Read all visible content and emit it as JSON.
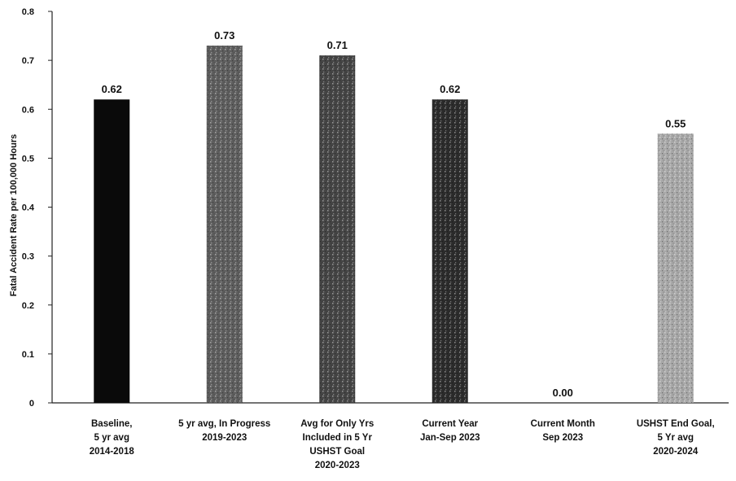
{
  "chart_data": {
    "type": "bar",
    "ylabel": "Fatal Accident Rate per 100,000 Hours",
    "ylim": [
      0,
      0.8
    ],
    "yticks": [
      "0",
      "0.1",
      "0.2",
      "0.3",
      "0.4",
      "0.5",
      "0.6",
      "0.7",
      "0.8"
    ],
    "grid": false,
    "legend": "none",
    "bars": [
      {
        "category": [
          "Baseline,",
          "5 yr avg",
          "2014-2018"
        ],
        "value": 0.62,
        "label": "0.62",
        "fill": "#0a0a0a",
        "pattern": "solid"
      },
      {
        "category": [
          "5 yr avg, In Progress",
          "2019-2023"
        ],
        "value": 0.73,
        "label": "0.73",
        "fill": "#5e5e5e",
        "pattern": "dots"
      },
      {
        "category": [
          "Avg for Only Yrs",
          "Included in 5 Yr",
          "USHST Goal",
          "2020-2023"
        ],
        "value": 0.71,
        "label": "0.71",
        "fill": "#454545",
        "pattern": "dots"
      },
      {
        "category": [
          "Current Year",
          "Jan-Sep 2023"
        ],
        "value": 0.62,
        "label": "0.62",
        "fill": "#2c2c2c",
        "pattern": "dots"
      },
      {
        "category": [
          "Current Month",
          "Sep 2023"
        ],
        "value": 0.0,
        "label": "0.00",
        "fill": "#777777",
        "pattern": "dots"
      },
      {
        "category": [
          "USHST End Goal,",
          "5 Yr avg",
          "2020-2024"
        ],
        "value": 0.55,
        "label": "0.55",
        "fill": "#a8a8a8",
        "pattern": "dots"
      }
    ]
  }
}
